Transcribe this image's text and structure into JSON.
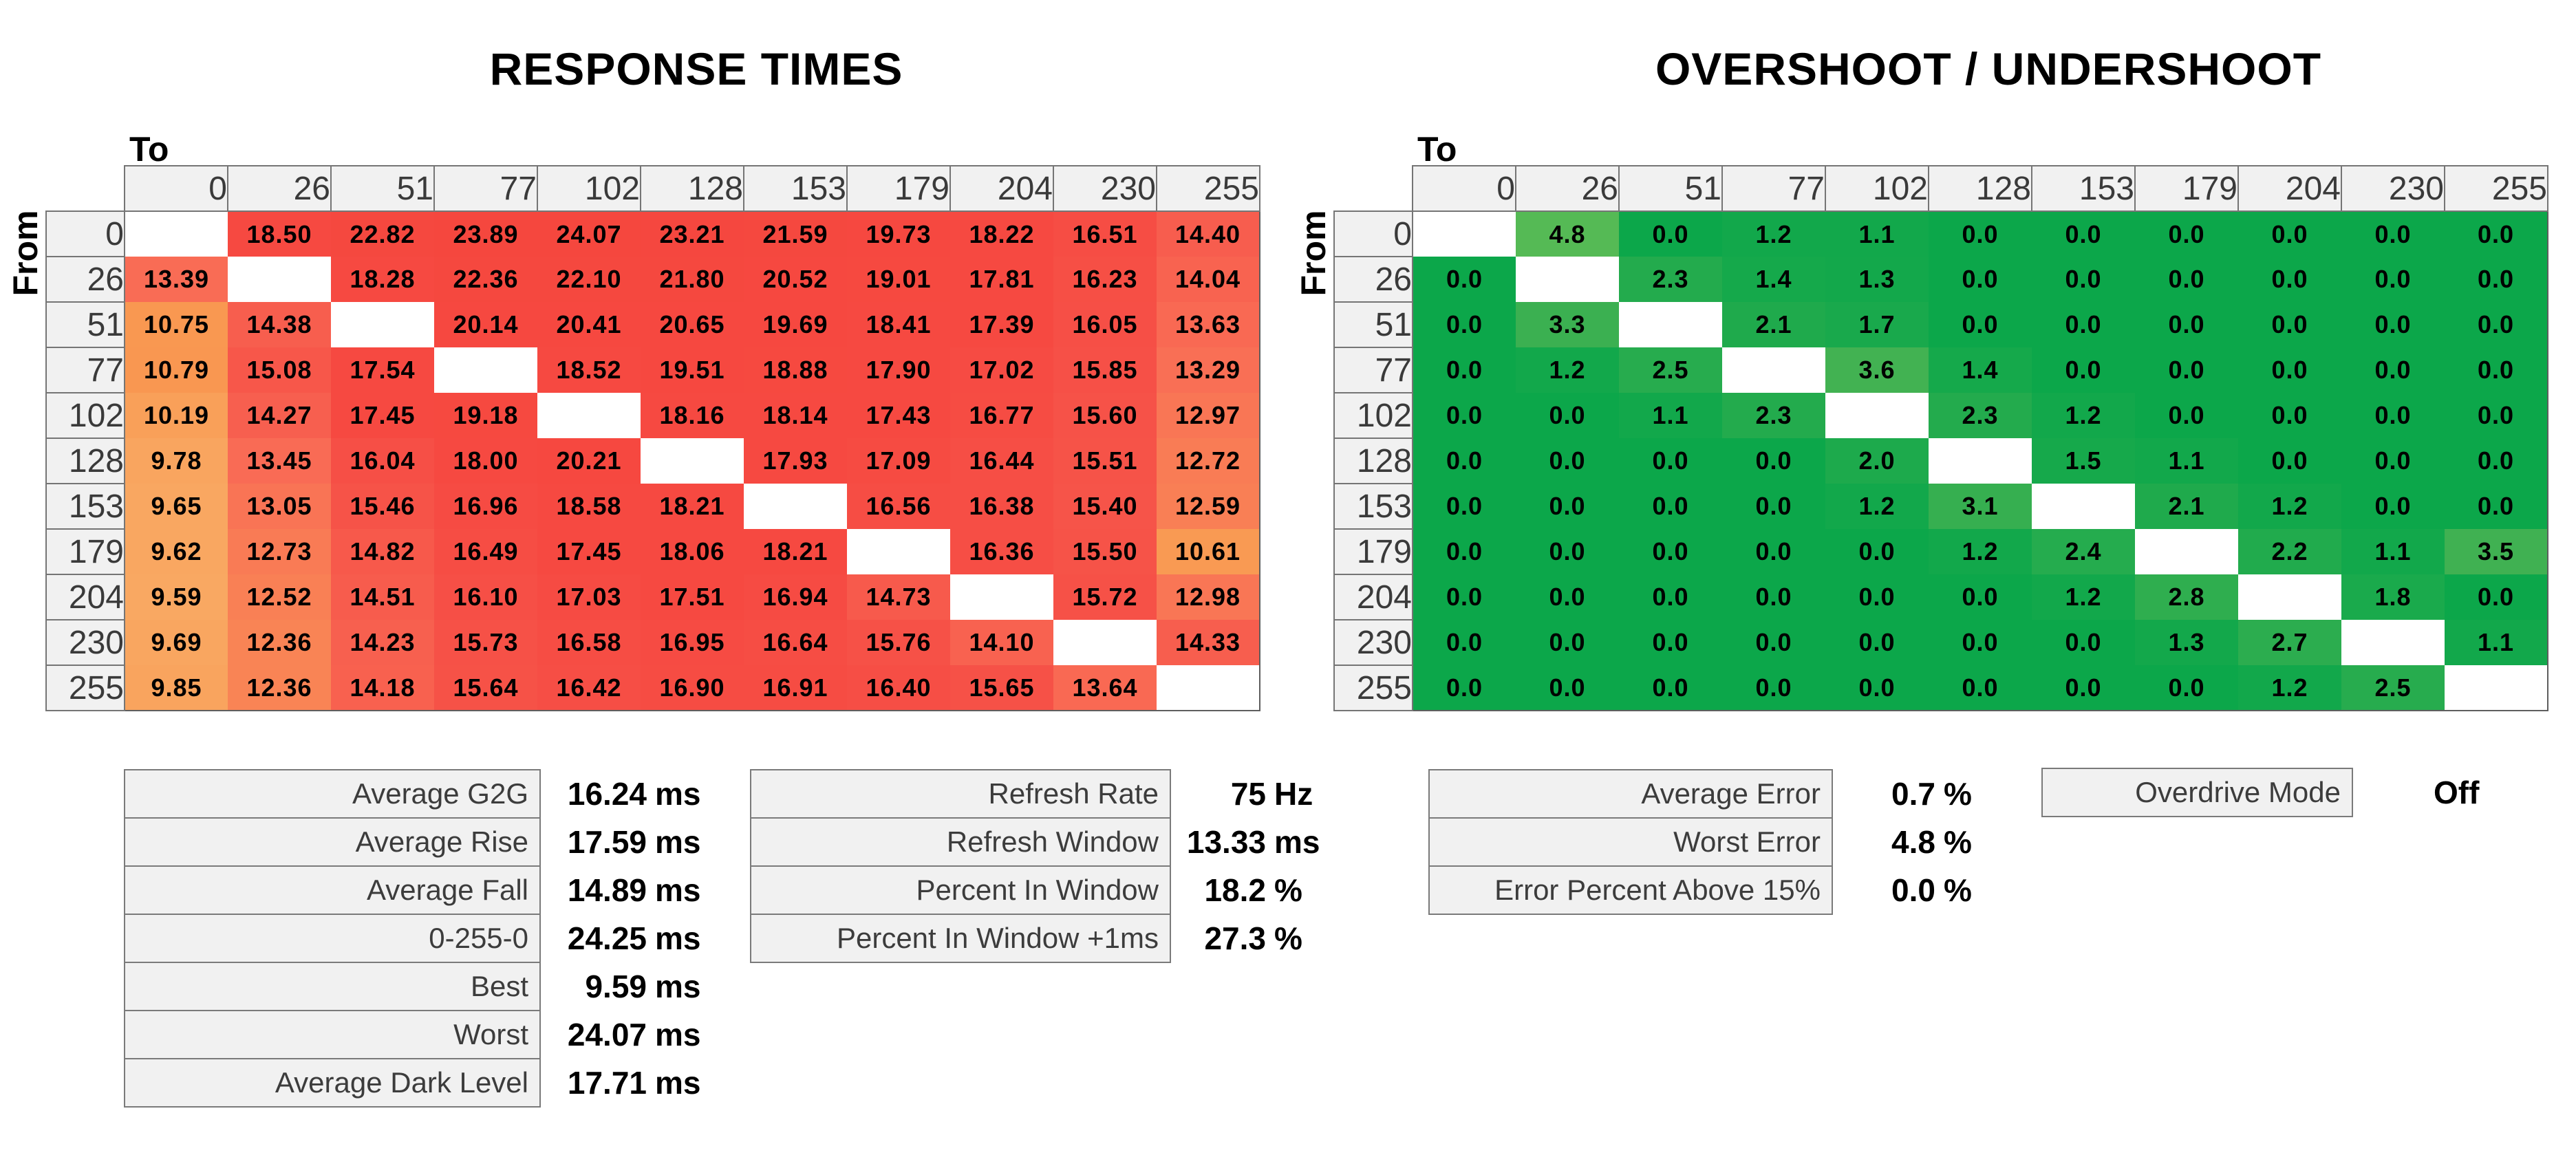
{
  "titles": {
    "left": "RESPONSE TIMES",
    "right": "OVERSHOOT / UNDERSHOOT"
  },
  "axis": {
    "to": "To",
    "from": "From"
  },
  "chart_data": [
    {
      "type": "heatmap",
      "name": "response-times-matrix",
      "title": "RESPONSE TIMES",
      "xlabel": "To",
      "ylabel": "From",
      "unit": "ms",
      "decimals": 2,
      "categories": [
        0,
        26,
        51,
        77,
        102,
        128,
        153,
        179,
        204,
        230,
        255
      ],
      "rows": [
        [
          null,
          18.5,
          22.82,
          23.89,
          24.07,
          23.21,
          21.59,
          19.73,
          18.22,
          16.51,
          14.4
        ],
        [
          13.39,
          null,
          18.28,
          22.36,
          22.1,
          21.8,
          20.52,
          19.01,
          17.81,
          16.23,
          14.04
        ],
        [
          10.75,
          14.38,
          null,
          20.14,
          20.41,
          20.65,
          19.69,
          18.41,
          17.39,
          16.05,
          13.63
        ],
        [
          10.79,
          15.08,
          17.54,
          null,
          18.52,
          19.51,
          18.88,
          17.9,
          17.02,
          15.85,
          13.29
        ],
        [
          10.19,
          14.27,
          17.45,
          19.18,
          null,
          18.16,
          18.14,
          17.43,
          16.77,
          15.6,
          12.97
        ],
        [
          9.78,
          13.45,
          16.04,
          18.0,
          20.21,
          null,
          17.93,
          17.09,
          16.44,
          15.51,
          12.72
        ],
        [
          9.65,
          13.05,
          15.46,
          16.96,
          18.58,
          18.21,
          null,
          16.56,
          16.38,
          15.4,
          12.59
        ],
        [
          9.62,
          12.73,
          14.82,
          16.49,
          17.45,
          18.06,
          18.21,
          null,
          16.36,
          15.5,
          10.61
        ],
        [
          9.59,
          12.52,
          14.51,
          16.1,
          17.03,
          17.51,
          16.94,
          14.73,
          null,
          15.72,
          12.98
        ],
        [
          9.69,
          12.36,
          14.23,
          15.73,
          16.58,
          16.95,
          16.64,
          15.76,
          14.1,
          null,
          14.33
        ],
        [
          9.85,
          12.36,
          14.18,
          15.64,
          16.42,
          16.9,
          16.91,
          16.4,
          15.65,
          13.64,
          null
        ]
      ],
      "color_scale": [
        [
          9.5,
          "#F9A963"
        ],
        [
          10.9,
          "#F9964F"
        ],
        [
          12.4,
          "#F98355"
        ],
        [
          13.4,
          "#F96C55"
        ],
        [
          14.5,
          "#F75C4D"
        ],
        [
          15.7,
          "#F65147"
        ],
        [
          17.5,
          "#F64941"
        ],
        [
          25.0,
          "#F5473E"
        ]
      ]
    },
    {
      "type": "heatmap",
      "name": "overshoot-matrix",
      "title": "OVERSHOOT / UNDERSHOOT",
      "xlabel": "To",
      "ylabel": "From",
      "unit": "%",
      "decimals": 1,
      "categories": [
        0,
        26,
        51,
        77,
        102,
        128,
        153,
        179,
        204,
        230,
        255
      ],
      "rows": [
        [
          null,
          4.8,
          0.0,
          1.2,
          1.1,
          0.0,
          0.0,
          0.0,
          0.0,
          0.0,
          0.0
        ],
        [
          0.0,
          null,
          2.3,
          1.4,
          1.3,
          0.0,
          0.0,
          0.0,
          0.0,
          0.0,
          0.0
        ],
        [
          0.0,
          3.3,
          null,
          2.1,
          1.7,
          0.0,
          0.0,
          0.0,
          0.0,
          0.0,
          0.0
        ],
        [
          0.0,
          1.2,
          2.5,
          null,
          3.6,
          1.4,
          0.0,
          0.0,
          0.0,
          0.0,
          0.0
        ],
        [
          0.0,
          0.0,
          1.1,
          2.3,
          null,
          2.3,
          1.2,
          0.0,
          0.0,
          0.0,
          0.0
        ],
        [
          0.0,
          0.0,
          0.0,
          0.0,
          2.0,
          null,
          1.5,
          1.1,
          0.0,
          0.0,
          0.0
        ],
        [
          0.0,
          0.0,
          0.0,
          0.0,
          1.2,
          3.1,
          null,
          2.1,
          1.2,
          0.0,
          0.0
        ],
        [
          0.0,
          0.0,
          0.0,
          0.0,
          0.0,
          1.2,
          2.4,
          null,
          2.2,
          1.1,
          3.5
        ],
        [
          0.0,
          0.0,
          0.0,
          0.0,
          0.0,
          0.0,
          1.2,
          2.8,
          null,
          1.8,
          0.0
        ],
        [
          0.0,
          0.0,
          0.0,
          0.0,
          0.0,
          0.0,
          0.0,
          1.3,
          2.7,
          null,
          1.1
        ],
        [
          0.0,
          0.0,
          0.0,
          0.0,
          0.0,
          0.0,
          0.0,
          0.0,
          1.2,
          2.5,
          null
        ]
      ],
      "color_scale": [
        [
          0.0,
          "#0CA74A"
        ],
        [
          1.2,
          "#12A84B"
        ],
        [
          2.0,
          "#1DAA4C"
        ],
        [
          2.5,
          "#27AC4E"
        ],
        [
          3.3,
          "#3BB051"
        ],
        [
          3.6,
          "#42B252"
        ],
        [
          4.8,
          "#55BA55"
        ]
      ]
    }
  ],
  "stats": {
    "left": [
      {
        "label": "Average G2G",
        "value": "16.24",
        "unit": "ms"
      },
      {
        "label": "Average Rise",
        "value": "17.59",
        "unit": "ms"
      },
      {
        "label": "Average Fall",
        "value": "14.89",
        "unit": "ms"
      },
      {
        "label": "0-255-0",
        "value": "24.25",
        "unit": "ms"
      },
      {
        "label": "Best",
        "value": "9.59",
        "unit": "ms"
      },
      {
        "label": "Worst",
        "value": "24.07",
        "unit": "ms"
      },
      {
        "label": "Average Dark Level",
        "value": "17.71",
        "unit": "ms"
      }
    ],
    "middle": [
      {
        "label": "Refresh Rate",
        "value": "75",
        "unit": "Hz"
      },
      {
        "label": "Refresh Window",
        "value": "13.33",
        "unit": "ms"
      },
      {
        "label": "Percent In Window",
        "value": "18.2",
        "unit": "%"
      },
      {
        "label": "Percent In Window +1ms",
        "value": "27.3",
        "unit": "%"
      }
    ],
    "right": [
      {
        "label": "Average Error",
        "value": "0.7",
        "unit": "%"
      },
      {
        "label": "Worst Error",
        "value": "4.8",
        "unit": "%"
      },
      {
        "label": "Error Percent Above 15%",
        "value": "0.0",
        "unit": "%"
      }
    ],
    "overdrive": {
      "label": "Overdrive Mode",
      "value": "Off"
    }
  },
  "colors": {
    "background": "#FFFFFF",
    "header_cell_bg": "#F1F1F1",
    "header_border": "#757575",
    "stat_box_bg": "#F1F1F1",
    "stat_box_border": "#7A7A7A",
    "header_text": "#3A3A3A",
    "label_text": "#3C3C3C",
    "value_text": "#000000"
  }
}
